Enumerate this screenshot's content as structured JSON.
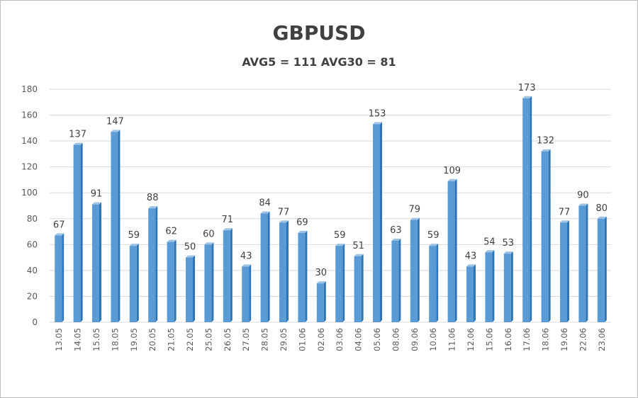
{
  "chart_data": {
    "type": "bar",
    "title": "GBPUSD",
    "subtitle": "AVG5 = 111 AVG30 = 81",
    "categories": [
      "13.05",
      "14.05",
      "15.05",
      "18.05",
      "19.05",
      "20.05",
      "21.05",
      "22.05",
      "25.05",
      "26.05",
      "27.05",
      "28.05",
      "29.05",
      "01.06",
      "02.06",
      "03.06",
      "04.06",
      "05.06",
      "08.06",
      "09.06",
      "10.06",
      "11.06",
      "12.06",
      "15.06",
      "16.06",
      "17.06",
      "18.06",
      "19.06",
      "22.06",
      "23.06"
    ],
    "values": [
      67,
      137,
      91,
      147,
      59,
      88,
      62,
      50,
      60,
      71,
      43,
      84,
      77,
      69,
      30,
      59,
      51,
      153,
      63,
      79,
      59,
      109,
      43,
      54,
      53,
      173,
      132,
      77,
      90,
      80
    ],
    "ylim": [
      0,
      180
    ],
    "yticks": [
      0,
      20,
      40,
      60,
      80,
      100,
      120,
      140,
      160,
      180
    ],
    "grid": true,
    "colors": {
      "bar": "#5b9bd5",
      "bar_side": "#2e75b6",
      "bar_top": "#9dc3e6",
      "grid": "#d9d9d9"
    }
  }
}
